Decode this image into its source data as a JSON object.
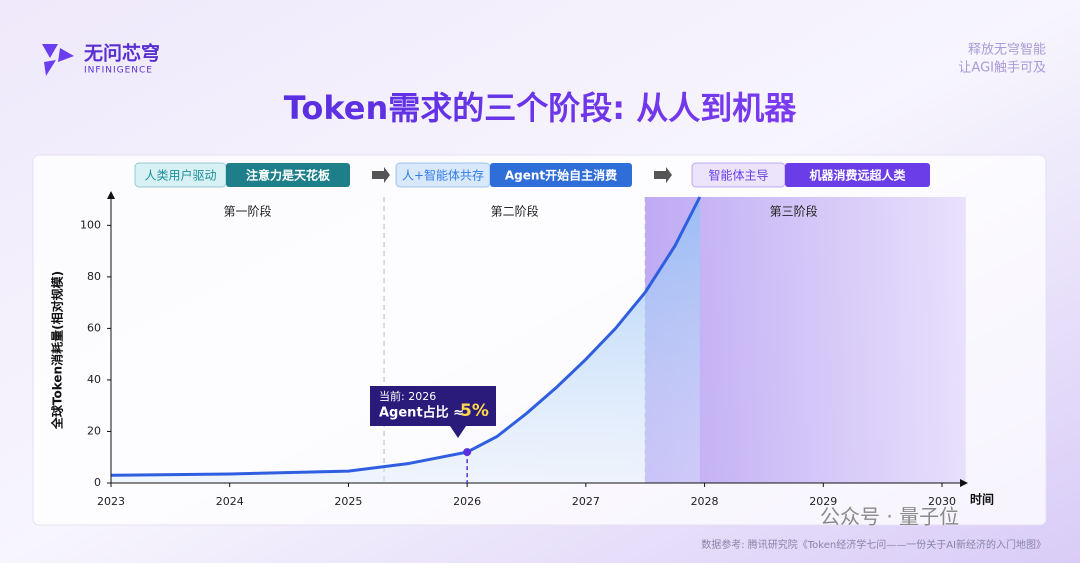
{
  "header": {
    "brand": "无问芯穹",
    "brand_en": "INFINIGENCE",
    "tagline": [
      "释放无穹智能",
      "让AGI触手可及"
    ],
    "title": "Token需求的三个阶段: 从人到机器"
  },
  "banners": [
    {
      "left": "人类用户驱动",
      "right": "注意力是天花板"
    },
    {
      "left": "人+智能体共存",
      "right": "Agent开始自主消费"
    },
    {
      "left": "智能体主导",
      "right": "机器消费远超人类"
    }
  ],
  "chart_data": {
    "type": "line",
    "x_label": "时间",
    "y_label": "全球Token消耗量(相对规模)",
    "x": [
      2023,
      2024,
      2025,
      2025.5,
      2026,
      2026.25,
      2026.5,
      2026.75,
      2027,
      2027.25,
      2027.5,
      2027.75,
      2027.96
    ],
    "series": [
      {
        "name": "Token消耗量",
        "color": "#2f5fe0",
        "values": [
          3,
          3.5,
          4.6,
          7.5,
          12,
          18,
          27,
          37,
          48,
          60,
          74,
          92,
          111
        ]
      }
    ],
    "xlim": [
      2023,
      2030
    ],
    "xticks": [
      2023,
      2024,
      2025,
      2026,
      2027,
      2028,
      2029,
      2030
    ],
    "ylim": [
      0,
      111
    ],
    "yticks": [
      0,
      20,
      40,
      60,
      80,
      100
    ],
    "stages": [
      {
        "name": "第一阶段",
        "start": 2023,
        "end": 2025.3
      },
      {
        "name": "第二阶段",
        "start": 2025.3,
        "end": 2027.5
      },
      {
        "name": "第三阶段",
        "start": 2027.5,
        "end": 2030.2
      }
    ],
    "callout": {
      "title": "当前: 2026",
      "text": "Agent占比 ≈",
      "highlight": "5%"
    }
  },
  "footer": {
    "source": "数据参考: 腾讯研究院《Token经济学七问——一份关于AI新经济的入门地图》",
    "watermark": "公众号 · 量子位"
  }
}
